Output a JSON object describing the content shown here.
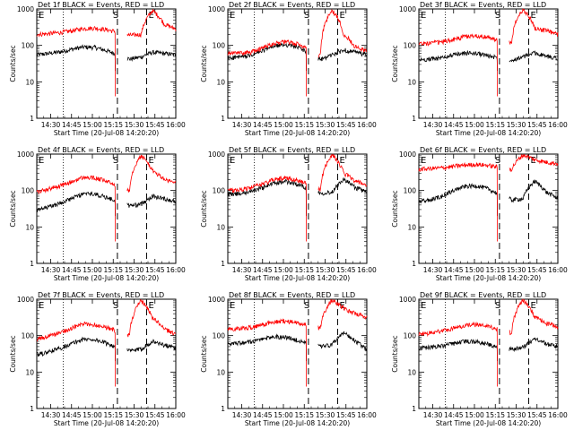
{
  "chart_data": [
    {
      "type": "line",
      "title": "Det 1f BLACK = Events, RED = LLD",
      "xlabel": "Start Time (20-Jul-08 14:20:20)",
      "ylabel": "Counts/sec",
      "markers": [
        "E",
        "S",
        "E"
      ],
      "series": [
        {
          "name": "Events",
          "color": "#000000",
          "values": [
            55,
            60,
            66,
            78,
            90,
            88,
            72,
            55,
            42,
            48,
            65,
            60,
            55
          ]
        },
        {
          "name": "LLD",
          "color": "#ff0000",
          "values": [
            200,
            210,
            225,
            250,
            290,
            300,
            270,
            230,
            190,
            200,
            900,
            380,
            280
          ]
        }
      ]
    },
    {
      "type": "line",
      "title": "Det 2f BLACK = Events, RED = LLD",
      "xlabel": "Start Time (20-Jul-08 14:20:20)",
      "ylabel": "Counts/sec",
      "markers": [
        "E",
        "S",
        "E"
      ],
      "series": [
        {
          "name": "Events",
          "color": "#000000",
          "values": [
            45,
            48,
            52,
            70,
            95,
            105,
            90,
            60,
            40,
            55,
            75,
            65,
            55
          ]
        },
        {
          "name": "LLD",
          "color": "#ff0000",
          "values": [
            60,
            62,
            65,
            85,
            115,
            125,
            110,
            75,
            50,
            900,
            200,
            90,
            70
          ]
        }
      ]
    },
    {
      "type": "line",
      "title": "Det 3f BLACK = Events, RED = LLD",
      "xlabel": "Start Time (20-Jul-08 14:20:20)",
      "ylabel": "Counts/sec",
      "markers": [
        "E",
        "S",
        "E"
      ],
      "series": [
        {
          "name": "Events",
          "color": "#000000",
          "values": [
            40,
            42,
            46,
            55,
            62,
            60,
            52,
            45,
            40,
            48,
            62,
            50,
            45
          ]
        },
        {
          "name": "LLD",
          "color": "#ff0000",
          "values": [
            110,
            115,
            125,
            145,
            175,
            185,
            165,
            130,
            115,
            950,
            300,
            250,
            200
          ]
        }
      ]
    },
    {
      "type": "line",
      "title": "Det 4f BLACK = Events, RED = LLD",
      "xlabel": "Start Time (20-Jul-08 14:20:20)",
      "ylabel": "Counts/sec",
      "markers": [
        "E",
        "S",
        "E"
      ],
      "series": [
        {
          "name": "Events",
          "color": "#000000",
          "values": [
            28,
            35,
            45,
            60,
            80,
            80,
            65,
            50,
            38,
            42,
            70,
            60,
            50
          ]
        },
        {
          "name": "LLD",
          "color": "#ff0000",
          "values": [
            90,
            110,
            135,
            170,
            230,
            220,
            180,
            130,
            100,
            900,
            340,
            200,
            160
          ]
        }
      ]
    },
    {
      "type": "line",
      "title": "Det 5f BLACK = Events, RED = LLD",
      "xlabel": "Start Time (20-Jul-08 14:20:20)",
      "ylabel": "Counts/sec",
      "markers": [
        "E",
        "S",
        "E"
      ],
      "series": [
        {
          "name": "Events",
          "color": "#000000",
          "values": [
            80,
            82,
            95,
            120,
            160,
            175,
            150,
            110,
            85,
            90,
            200,
            120,
            90
          ]
        },
        {
          "name": "LLD",
          "color": "#ff0000",
          "values": [
            100,
            105,
            120,
            150,
            200,
            225,
            195,
            140,
            105,
            950,
            300,
            180,
            140
          ]
        }
      ]
    },
    {
      "type": "line",
      "title": "Det 6f BLACK = Events, RED = LLD",
      "xlabel": "Start Time (20-Jul-08 14:20:20)",
      "ylabel": "Counts/sec",
      "markers": [
        "E",
        "S",
        "E"
      ],
      "series": [
        {
          "name": "Events",
          "color": "#000000",
          "values": [
            50,
            55,
            70,
            100,
            130,
            135,
            110,
            75,
            55,
            60,
            180,
            90,
            60
          ]
        },
        {
          "name": "LLD",
          "color": "#ff0000",
          "values": [
            380,
            400,
            420,
            460,
            500,
            520,
            490,
            430,
            380,
            950,
            700,
            600,
            550
          ]
        }
      ]
    },
    {
      "type": "line",
      "title": "Det 7f BLACK = Events, RED = LLD",
      "xlabel": "Start Time (20-Jul-08 14:20:20)",
      "ylabel": "Counts/sec",
      "markers": [
        "E",
        "S",
        "E"
      ],
      "series": [
        {
          "name": "Events",
          "color": "#000000",
          "values": [
            30,
            35,
            45,
            60,
            80,
            78,
            62,
            48,
            38,
            42,
            70,
            55,
            45
          ]
        },
        {
          "name": "LLD",
          "color": "#ff0000",
          "values": [
            80,
            95,
            120,
            160,
            210,
            200,
            170,
            130,
            100,
            900,
            300,
            150,
            110
          ]
        }
      ]
    },
    {
      "type": "line",
      "title": "Det 8f BLACK = Events, RED = LLD",
      "xlabel": "Start Time (20-Jul-08 14:20:20)",
      "ylabel": "Counts/sec",
      "markers": [
        "E",
        "S",
        "E"
      ],
      "series": [
        {
          "name": "Events",
          "color": "#000000",
          "values": [
            60,
            62,
            68,
            80,
            95,
            90,
            75,
            60,
            50,
            55,
            120,
            70,
            40
          ]
        },
        {
          "name": "LLD",
          "color": "#ff0000",
          "values": [
            150,
            155,
            170,
            200,
            240,
            250,
            230,
            190,
            160,
            950,
            550,
            400,
            320
          ]
        }
      ]
    },
    {
      "type": "line",
      "title": "Det 9f BLACK = Events, RED = LLD",
      "xlabel": "Start Time (20-Jul-08 14:20:20)",
      "ylabel": "Counts/sec",
      "markers": [
        "E",
        "S",
        "E"
      ],
      "series": [
        {
          "name": "Events",
          "color": "#000000",
          "values": [
            45,
            48,
            52,
            60,
            70,
            68,
            58,
            48,
            42,
            48,
            80,
            60,
            50
          ]
        },
        {
          "name": "LLD",
          "color": "#ff0000",
          "values": [
            110,
            120,
            135,
            160,
            190,
            200,
            180,
            145,
            120,
            950,
            320,
            220,
            170
          ]
        }
      ]
    }
  ],
  "axes": {
    "y_ticks": [
      "1",
      "10",
      "100",
      "1000"
    ],
    "y_range": [
      1,
      1000
    ],
    "y_scale": "log",
    "x_ticks": [
      "14:30",
      "14:45",
      "15:00",
      "15:15",
      "15:30",
      "15:45",
      "16:00"
    ],
    "x_range_minutes": [
      0,
      100
    ]
  }
}
